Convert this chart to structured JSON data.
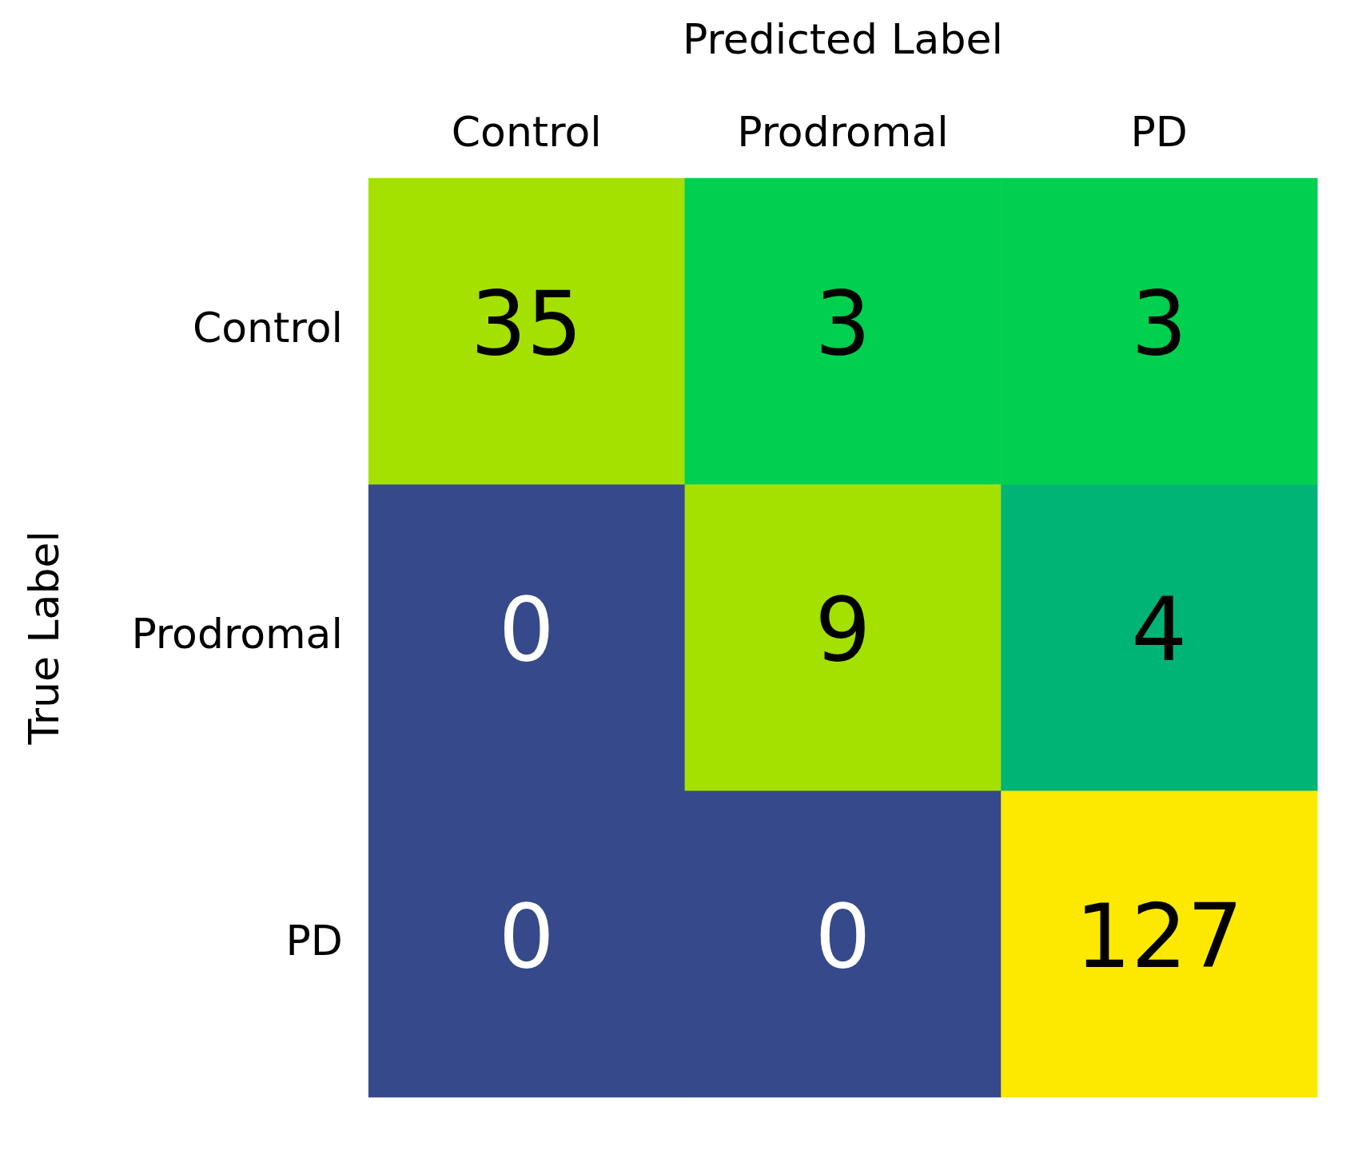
{
  "chart_data": {
    "type": "heatmap",
    "xlabel": "Predicted Label",
    "ylabel": "True Label",
    "categories": [
      "Control",
      "Prodromal",
      "PD"
    ],
    "y_categories": [
      "Control",
      "Prodromal",
      "PD"
    ],
    "cells": [
      [
        35,
        3,
        3
      ],
      [
        0,
        9,
        4
      ],
      [
        0,
        0,
        127
      ]
    ],
    "colors": [
      [
        "#a4e000",
        "#00cf50",
        "#00cf50"
      ],
      [
        "#36498a",
        "#a4e000",
        "#00b476"
      ],
      [
        "#36498a",
        "#36498a",
        "#fde800"
      ]
    ],
    "data_labels": true
  }
}
